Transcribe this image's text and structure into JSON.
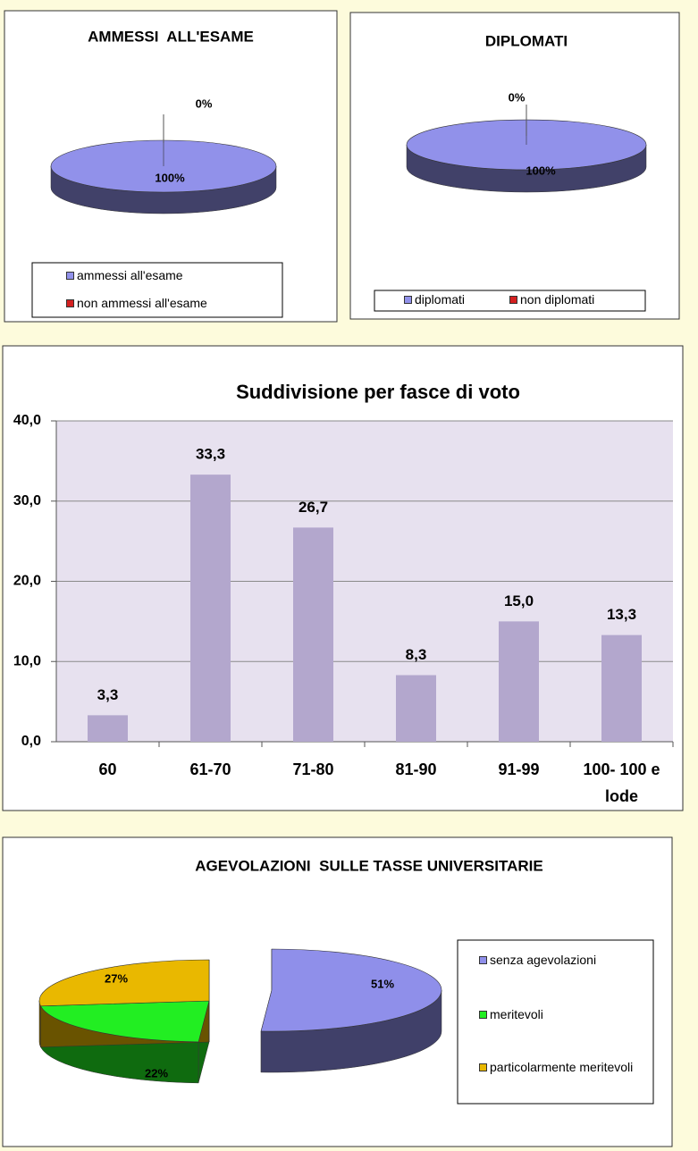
{
  "chart_data": [
    {
      "type": "pie",
      "title": "AMMESSI  ALL'ESAME",
      "categories": [
        "ammessi all'esame",
        "non ammessi all'esame"
      ],
      "values": [
        100,
        0
      ],
      "value_labels": [
        "100%",
        "0%"
      ],
      "colors": [
        "#9191ea",
        "#d42020"
      ]
    },
    {
      "type": "pie",
      "title": "DIPLOMATI",
      "categories": [
        "diplomati",
        "non diplomati"
      ],
      "values": [
        100,
        0
      ],
      "value_labels": [
        "100%",
        "0%"
      ],
      "colors": [
        "#9191ea",
        "#d42020"
      ]
    },
    {
      "type": "bar",
      "title": "Suddivisione per fasce di voto",
      "categories": [
        "60",
        "61-70",
        "71-80",
        "81-90",
        "91-99",
        "100- 100 e lode"
      ],
      "values": [
        3.3,
        33.3,
        26.7,
        8.3,
        15.0,
        13.3
      ],
      "value_labels": [
        "3,3",
        "33,3",
        "26,7",
        "8,3",
        "15,0",
        "13,3"
      ],
      "color": "#b3a7cd",
      "ylim": [
        0,
        40
      ],
      "yticks": [
        {
          "value": 0,
          "label": "0,0"
        },
        {
          "value": 10,
          "label": "10,0"
        },
        {
          "value": 20,
          "label": "20,0"
        },
        {
          "value": 30,
          "label": "30,0"
        },
        {
          "value": 40,
          "label": "40,0"
        }
      ],
      "grid": true
    },
    {
      "type": "pie",
      "title": "AGEVOLAZIONI  SULLE TASSE UNIVERSITARIE",
      "categories": [
        "senza agevolazioni",
        "meritevoli",
        "particolarmente meritevoli"
      ],
      "values": [
        51,
        22,
        27
      ],
      "value_labels": [
        "51%",
        "22%",
        "27%"
      ],
      "colors": [
        "#8f8fea",
        "#22ee22",
        "#e9b800"
      ]
    }
  ]
}
